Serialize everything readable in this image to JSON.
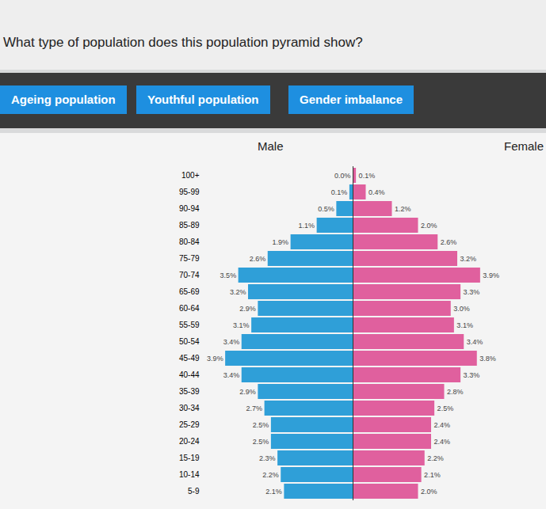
{
  "question": "What type of population does this population pyramid show?",
  "answer_options": [
    "Ageing population",
    "Youthful population",
    "Gender imbalance"
  ],
  "chart_data": {
    "type": "pyramid",
    "orientation": "horizontal",
    "data_labels": true,
    "tick_labels": "y",
    "categories": [
      "100+",
      "95-99",
      "90-94",
      "85-89",
      "80-84",
      "75-79",
      "70-74",
      "65-69",
      "60-64",
      "55-59",
      "50-54",
      "45-49",
      "40-44",
      "35-39",
      "30-34",
      "25-29",
      "20-24",
      "15-19",
      "10-14",
      "5-9"
    ],
    "series": [
      {
        "name": "Male",
        "color": "#2f9fd8",
        "values": [
          0.0,
          0.1,
          0.5,
          1.1,
          1.9,
          2.6,
          3.5,
          3.2,
          2.9,
          3.1,
          3.4,
          3.9,
          3.4,
          2.9,
          2.7,
          2.5,
          2.5,
          2.3,
          2.2,
          2.1
        ],
        "value_labels": [
          "0.0%",
          "0.1%",
          "0.5%",
          "1.1%",
          "1.9%",
          "2.6%",
          "3.5%",
          "3.2%",
          "2.9%",
          "3.1%",
          "3.4%",
          "3.9%",
          "3.4%",
          "2.9%",
          "2.7%",
          "2.5%",
          "2.5%",
          "2.3%",
          "2.2%",
          "2.1%"
        ]
      },
      {
        "name": "Female",
        "color": "#e0609e",
        "values": [
          0.1,
          0.4,
          1.2,
          2.0,
          2.6,
          3.2,
          3.9,
          3.3,
          3.0,
          3.1,
          3.4,
          3.8,
          3.3,
          2.8,
          2.5,
          2.4,
          2.4,
          2.2,
          2.1,
          2.0
        ],
        "value_labels": [
          "0.1%",
          "0.4%",
          "1.2%",
          "2.0%",
          "2.6%",
          "3.2%",
          "3.9%",
          "3.3%",
          "3.0%",
          "3.1%",
          "3.4%",
          "3.8%",
          "3.3%",
          "2.8%",
          "2.5%",
          "2.4%",
          "2.4%",
          "2.2%",
          "2.1%",
          "2.0%"
        ]
      }
    ]
  }
}
